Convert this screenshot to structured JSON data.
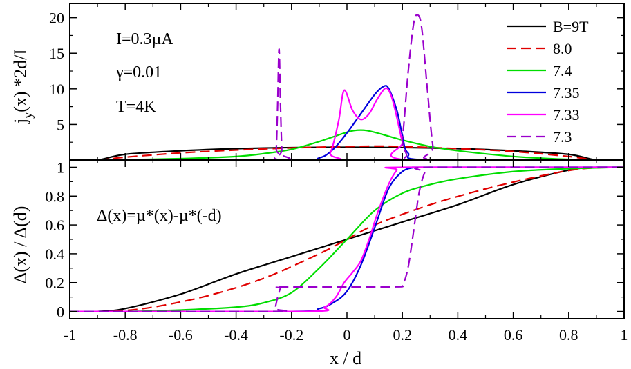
{
  "chart_data": [
    {
      "type": "line",
      "panel": "top",
      "ylabel_main": "j",
      "ylabel_sub": "y",
      "ylabel_rest": "(x) *2d/I",
      "xlim": [
        -1,
        1
      ],
      "ylim": [
        0,
        22
      ],
      "yticks": [
        5,
        10,
        15,
        20
      ],
      "yticks_labels": [
        "5",
        "10",
        "15",
        "20"
      ],
      "annotations": [
        "I=0.3µA",
        "γ=0.01",
        "T=4K"
      ],
      "legend_position": "top-right",
      "series": [
        {
          "name": "B=9T",
          "color": "#000000",
          "dash": "solid",
          "x": [
            -1,
            -0.9,
            -0.8,
            -0.6,
            -0.4,
            -0.2,
            0,
            0.2,
            0.4,
            0.6,
            0.8,
            0.9,
            1
          ],
          "y": [
            0,
            0,
            0.8,
            1.3,
            1.6,
            1.75,
            1.8,
            1.75,
            1.6,
            1.3,
            0.8,
            0,
            0
          ]
        },
        {
          "name": "8.0",
          "color": "#e00000",
          "dash": "dashed",
          "x": [
            -1,
            -0.9,
            -0.8,
            -0.6,
            -0.4,
            -0.2,
            0,
            0.1,
            0.2,
            0.4,
            0.6,
            0.8,
            0.9,
            1
          ],
          "y": [
            0,
            0,
            0.4,
            1.0,
            1.4,
            1.7,
            1.9,
            1.95,
            1.9,
            1.6,
            1.2,
            0.5,
            0,
            0
          ]
        },
        {
          "name": "7.4",
          "color": "#00dd00",
          "dash": "solid",
          "x": [
            -1,
            -0.8,
            -0.6,
            -0.4,
            -0.3,
            -0.2,
            -0.1,
            0,
            0.05,
            0.1,
            0.2,
            0.3,
            0.4,
            0.6,
            0.8,
            1
          ],
          "y": [
            0,
            0.05,
            0.2,
            0.5,
            0.9,
            1.5,
            2.6,
            3.9,
            4.2,
            3.9,
            2.8,
            1.9,
            1.3,
            0.5,
            0.1,
            0
          ]
        },
        {
          "name": "7.35",
          "color": "#0000dd",
          "dash": "solid",
          "x": [
            -1,
            -0.2,
            -0.1,
            -0.05,
            0,
            0.05,
            0.1,
            0.13,
            0.15,
            0.18,
            0.2,
            0.22,
            0.3,
            1
          ],
          "y": [
            0,
            0,
            0.3,
            1.5,
            3.8,
            6.5,
            9.2,
            10.3,
            10.1,
            7.0,
            3.5,
            1.0,
            0,
            0
          ]
        },
        {
          "name": "7.33",
          "color": "#ff00ff",
          "dash": "solid",
          "x": [
            -1,
            -0.1,
            -0.06,
            -0.03,
            -0.01,
            0.02,
            0.05,
            0.08,
            0.11,
            0.14,
            0.16,
            0.18,
            0.2,
            0.22,
            1
          ],
          "y": [
            0,
            0,
            1.0,
            5.5,
            9.8,
            7.0,
            5.7,
            6.5,
            8.6,
            10.1,
            9.0,
            6.0,
            2.5,
            0,
            0
          ]
        },
        {
          "name": "7.3",
          "color": "#9a00cc",
          "dash": "dashed",
          "x": [
            -1,
            -0.26,
            -0.255,
            -0.25,
            -0.245,
            -0.24,
            -0.235,
            -0.23,
            0.18,
            0.2,
            0.22,
            0.24,
            0.255,
            0.27,
            0.29,
            0.31,
            0.33,
            1
          ],
          "y": [
            0,
            0,
            1.5,
            8.0,
            15.6,
            8.0,
            1.5,
            0,
            0,
            3.0,
            12.0,
            19.0,
            20.4,
            18.5,
            10.0,
            2.0,
            0,
            0
          ]
        }
      ]
    },
    {
      "type": "line",
      "panel": "bottom",
      "xlabel": "x / d",
      "ylabel": "Δ(x) / Δ(d)",
      "xlim": [
        -1,
        1
      ],
      "ylim": [
        -0.05,
        1.05
      ],
      "xticks": [
        -1,
        -0.8,
        -0.6,
        -0.4,
        -0.2,
        0,
        0.2,
        0.4,
        0.6,
        0.8,
        1
      ],
      "xticks_labels": [
        "-1",
        "-0.8",
        "-0.6",
        "-0.4",
        "-0.2",
        "0",
        "0.2",
        "0.4",
        "0.6",
        "0.8",
        "1"
      ],
      "yticks": [
        0,
        0.2,
        0.4,
        0.6,
        0.8,
        1
      ],
      "yticks_labels": [
        "0",
        "0.2",
        "0.4",
        "0.6",
        "0.8",
        "1"
      ],
      "annotations": [
        "Δ(x)=µ*(x)-µ*(-d)"
      ],
      "series": [
        {
          "name": "B=9T",
          "color": "#000000",
          "dash": "solid",
          "x": [
            -1,
            -0.9,
            -0.8,
            -0.6,
            -0.4,
            -0.2,
            0,
            0.2,
            0.4,
            0.6,
            0.8,
            0.9,
            1
          ],
          "y": [
            0,
            0,
            0.02,
            0.12,
            0.26,
            0.38,
            0.5,
            0.62,
            0.74,
            0.88,
            0.98,
            1,
            1
          ]
        },
        {
          "name": "8.0",
          "color": "#e00000",
          "dash": "dashed",
          "x": [
            -1,
            -0.85,
            -0.7,
            -0.5,
            -0.3,
            -0.1,
            0,
            0.1,
            0.3,
            0.5,
            0.7,
            0.85,
            1
          ],
          "y": [
            0,
            0,
            0.03,
            0.11,
            0.23,
            0.4,
            0.5,
            0.6,
            0.74,
            0.85,
            0.94,
            0.99,
            1
          ]
        },
        {
          "name": "7.4",
          "color": "#00dd00",
          "dash": "solid",
          "x": [
            -1,
            -0.8,
            -0.6,
            -0.4,
            -0.3,
            -0.2,
            -0.1,
            0,
            0.1,
            0.2,
            0.3,
            0.4,
            0.6,
            0.8,
            1
          ],
          "y": [
            0,
            0,
            0.01,
            0.03,
            0.06,
            0.13,
            0.3,
            0.5,
            0.7,
            0.82,
            0.88,
            0.92,
            0.97,
            0.99,
            1
          ]
        },
        {
          "name": "7.35",
          "color": "#0000dd",
          "dash": "solid",
          "x": [
            -1,
            -0.2,
            -0.1,
            -0.05,
            0,
            0.05,
            0.1,
            0.15,
            0.2,
            0.25,
            0.3,
            1
          ],
          "y": [
            0,
            0,
            0.02,
            0.06,
            0.14,
            0.32,
            0.58,
            0.85,
            0.97,
            1,
            1,
            1
          ]
        },
        {
          "name": "7.33",
          "color": "#ff00ff",
          "dash": "solid",
          "x": [
            -1,
            -0.15,
            -0.08,
            -0.04,
            -0.01,
            0.02,
            0.05,
            0.08,
            0.11,
            0.15,
            0.18,
            0.2,
            1
          ],
          "y": [
            0,
            0,
            0.03,
            0.1,
            0.2,
            0.27,
            0.35,
            0.5,
            0.68,
            0.88,
            0.98,
            1,
            1
          ]
        },
        {
          "name": "7.3",
          "color": "#9a00cc",
          "dash": "dashed",
          "x": [
            -1,
            -0.27,
            -0.26,
            -0.25,
            -0.24,
            -0.23,
            0.16,
            0.2,
            0.22,
            0.24,
            0.26,
            0.28,
            0.3,
            1
          ],
          "y": [
            0,
            0,
            0.02,
            0.1,
            0.16,
            0.17,
            0.17,
            0.19,
            0.3,
            0.55,
            0.82,
            0.96,
            1,
            1
          ]
        }
      ]
    }
  ]
}
